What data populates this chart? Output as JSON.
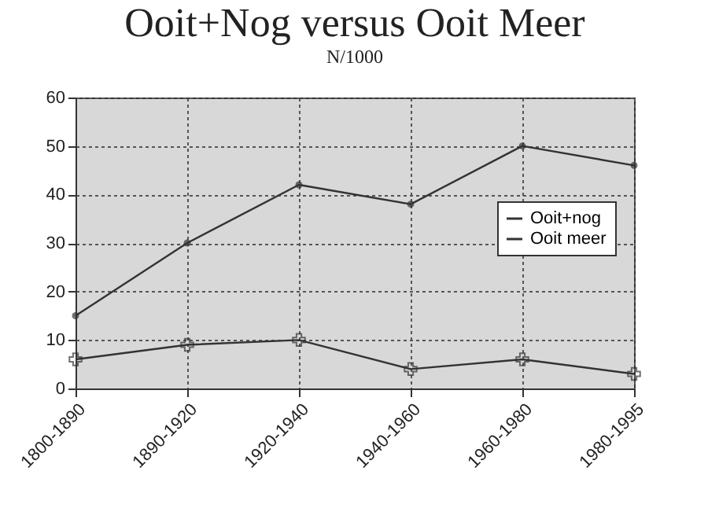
{
  "chart_data": {
    "type": "line",
    "title": "Ooit+Nog versus Ooit Meer",
    "subtitle": "N/1000",
    "categories": [
      "1800-1890",
      "1890-1920",
      "1920-1940",
      "1940-1960",
      "1960-1980",
      "1980-1995"
    ],
    "series": [
      {
        "name": "Ooit+nog",
        "color": "#333333",
        "marker": "circle",
        "values": [
          15,
          30,
          42,
          38,
          50,
          46
        ]
      },
      {
        "name": "Ooit meer",
        "color": "#333333",
        "marker": "cross",
        "values": [
          6,
          9,
          10,
          4,
          6,
          3
        ]
      }
    ],
    "ylim": [
      0,
      60
    ],
    "yticks": [
      0,
      10,
      20,
      30,
      40,
      50,
      60
    ],
    "grid": true,
    "legend": "right",
    "line_style": "solid"
  }
}
